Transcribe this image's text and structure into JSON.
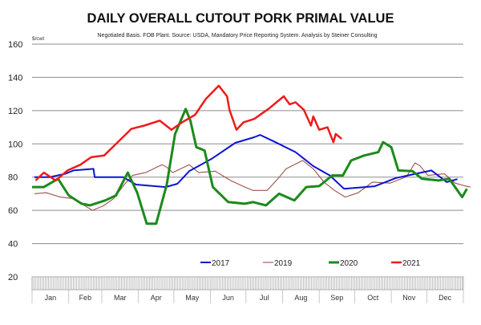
{
  "chart_data": {
    "type": "line",
    "title": "DAILY OVERALL CUTOUT PORK PRIMAL VALUE",
    "subtitle": "Negotiated Basis.  FOB Plant.  Source: USDA, Mandatory Price Reporting System.  Analysis by Steiner Consulting",
    "ylabel": "$/cwt",
    "xlabel": "",
    "ylim": [
      20,
      160
    ],
    "yticks": [
      160,
      140,
      120,
      100,
      80,
      60,
      40,
      20
    ],
    "xlim_day_of_year": [
      0,
      365
    ],
    "months": [
      "Jan",
      "Feb",
      "Mar",
      "Apr",
      "May",
      "Jun",
      "Jul",
      "Aug",
      "Sep",
      "Oct",
      "Nov",
      "Dec"
    ],
    "grid": true,
    "legend_position": "bottom",
    "series": [
      {
        "name": "2017",
        "color": "#0a14d2",
        "points": [
          [
            2,
            80
          ],
          [
            15,
            80
          ],
          [
            28,
            82
          ],
          [
            35,
            84
          ],
          [
            52,
            85
          ],
          [
            53,
            80
          ],
          [
            77,
            80
          ],
          [
            88,
            75.5
          ],
          [
            113,
            74
          ],
          [
            123,
            76
          ],
          [
            133,
            83.6
          ],
          [
            152,
            91
          ],
          [
            172,
            100.6
          ],
          [
            188,
            104
          ],
          [
            193,
            105.4
          ],
          [
            206,
            101
          ],
          [
            223,
            95
          ],
          [
            238,
            86.6
          ],
          [
            252,
            81
          ],
          [
            264,
            73
          ],
          [
            290,
            74.5
          ],
          [
            308,
            79.5
          ],
          [
            338,
            84
          ],
          [
            351,
            77
          ],
          [
            360,
            78.8
          ]
        ]
      },
      {
        "name": "2019",
        "color": "#a0504a",
        "points": [
          [
            2,
            70
          ],
          [
            12,
            70.6
          ],
          [
            24,
            68
          ],
          [
            35,
            67
          ],
          [
            51,
            60
          ],
          [
            60,
            62.6
          ],
          [
            69,
            67
          ],
          [
            78,
            75.5
          ],
          [
            85,
            81
          ],
          [
            96,
            82.7
          ],
          [
            110,
            87.5
          ],
          [
            114,
            86
          ],
          [
            119,
            82.7
          ],
          [
            133,
            87.5
          ],
          [
            141,
            82.7
          ],
          [
            155,
            83.6
          ],
          [
            168,
            78
          ],
          [
            180,
            74
          ],
          [
            187,
            72
          ],
          [
            193,
            72
          ],
          [
            199,
            72
          ],
          [
            208,
            79
          ],
          [
            215,
            85
          ],
          [
            229,
            90
          ],
          [
            238,
            85
          ],
          [
            247,
            77
          ],
          [
            256,
            72
          ],
          [
            265,
            68
          ],
          [
            276,
            70.6
          ],
          [
            288,
            77
          ],
          [
            303,
            76.4
          ],
          [
            317,
            80.3
          ],
          [
            324,
            88.5
          ],
          [
            328,
            87
          ],
          [
            335,
            81
          ],
          [
            349,
            82
          ],
          [
            358,
            76.4
          ],
          [
            367,
            74.6
          ],
          [
            371,
            74
          ]
        ]
      },
      {
        "name": "2020",
        "color": "#1b8a1b",
        "points": [
          [
            0,
            74
          ],
          [
            10,
            74
          ],
          [
            22,
            79
          ],
          [
            31,
            69
          ],
          [
            42,
            64
          ],
          [
            49,
            63
          ],
          [
            62,
            66
          ],
          [
            71,
            69
          ],
          [
            81,
            82.7
          ],
          [
            89,
            70.6
          ],
          [
            97,
            52
          ],
          [
            105,
            52
          ],
          [
            114,
            75.5
          ],
          [
            121,
            106
          ],
          [
            130,
            121
          ],
          [
            134,
            114
          ],
          [
            139,
            98
          ],
          [
            146,
            96
          ],
          [
            153,
            74
          ],
          [
            166,
            65
          ],
          [
            180,
            64
          ],
          [
            187,
            65
          ],
          [
            198,
            63
          ],
          [
            209,
            70
          ],
          [
            222,
            66
          ],
          [
            232,
            74
          ],
          [
            243,
            74.6
          ],
          [
            254,
            81
          ],
          [
            263,
            81
          ],
          [
            270,
            90
          ],
          [
            281,
            93
          ],
          [
            293,
            95
          ],
          [
            297,
            101
          ],
          [
            304,
            98
          ],
          [
            310,
            84
          ],
          [
            322,
            83.6
          ],
          [
            330,
            79
          ],
          [
            344,
            78
          ],
          [
            353,
            79
          ],
          [
            364,
            68
          ],
          [
            368,
            73
          ]
        ]
      },
      {
        "name": "2021",
        "color": "#ee1b1b",
        "points": [
          [
            3,
            78
          ],
          [
            10,
            82.7
          ],
          [
            20,
            78
          ],
          [
            30,
            84
          ],
          [
            41,
            87.5
          ],
          [
            50,
            92
          ],
          [
            61,
            93
          ],
          [
            72,
            100.6
          ],
          [
            84,
            109
          ],
          [
            95,
            111
          ],
          [
            108,
            114
          ],
          [
            118,
            108.5
          ],
          [
            127,
            113
          ],
          [
            138,
            117.5
          ],
          [
            147,
            127
          ],
          [
            158,
            135
          ],
          [
            165,
            128.6
          ],
          [
            167,
            120.5
          ],
          [
            173,
            108.5
          ],
          [
            179,
            113
          ],
          [
            188,
            115
          ],
          [
            200,
            121
          ],
          [
            213,
            128.6
          ],
          [
            218,
            123.8
          ],
          [
            223,
            125
          ],
          [
            230,
            120.5
          ],
          [
            236,
            111
          ],
          [
            238,
            116.5
          ],
          [
            243,
            108.5
          ],
          [
            250,
            110
          ],
          [
            255,
            101
          ],
          [
            257,
            106
          ],
          [
            262,
            103
          ]
        ]
      }
    ]
  }
}
